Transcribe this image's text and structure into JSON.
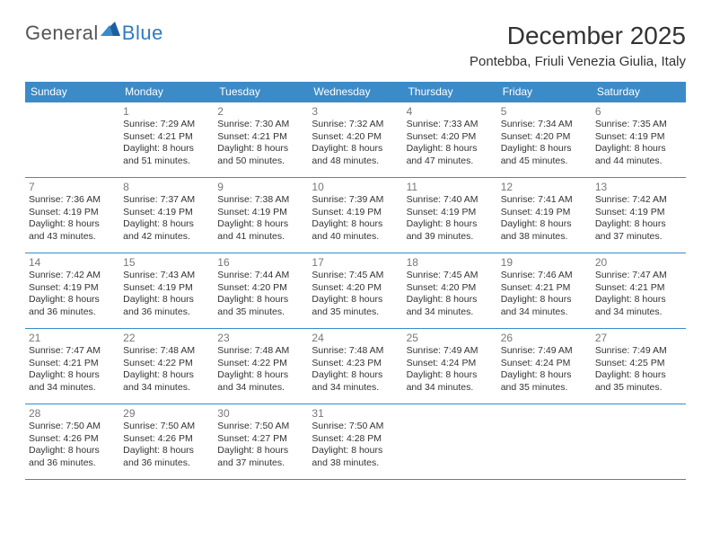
{
  "logo": {
    "text1": "General",
    "text2": "Blue"
  },
  "title": "December 2025",
  "location": "Pontebba, Friuli Venezia Giulia, Italy",
  "colors": {
    "header_bg": "#3b8bc9",
    "header_fg": "#ffffff",
    "border": "#3b8bc9",
    "daynum": "#777777",
    "text": "#333333",
    "logo_gray": "#555555",
    "logo_blue": "#2f7ac0"
  },
  "weekdays": [
    "Sunday",
    "Monday",
    "Tuesday",
    "Wednesday",
    "Thursday",
    "Friday",
    "Saturday"
  ],
  "grid": [
    [
      null,
      {
        "n": "1",
        "sr": "7:29 AM",
        "ss": "4:21 PM",
        "dl": "8 hours and 51 minutes."
      },
      {
        "n": "2",
        "sr": "7:30 AM",
        "ss": "4:21 PM",
        "dl": "8 hours and 50 minutes."
      },
      {
        "n": "3",
        "sr": "7:32 AM",
        "ss": "4:20 PM",
        "dl": "8 hours and 48 minutes."
      },
      {
        "n": "4",
        "sr": "7:33 AM",
        "ss": "4:20 PM",
        "dl": "8 hours and 47 minutes."
      },
      {
        "n": "5",
        "sr": "7:34 AM",
        "ss": "4:20 PM",
        "dl": "8 hours and 45 minutes."
      },
      {
        "n": "6",
        "sr": "7:35 AM",
        "ss": "4:19 PM",
        "dl": "8 hours and 44 minutes."
      }
    ],
    [
      {
        "n": "7",
        "sr": "7:36 AM",
        "ss": "4:19 PM",
        "dl": "8 hours and 43 minutes."
      },
      {
        "n": "8",
        "sr": "7:37 AM",
        "ss": "4:19 PM",
        "dl": "8 hours and 42 minutes."
      },
      {
        "n": "9",
        "sr": "7:38 AM",
        "ss": "4:19 PM",
        "dl": "8 hours and 41 minutes."
      },
      {
        "n": "10",
        "sr": "7:39 AM",
        "ss": "4:19 PM",
        "dl": "8 hours and 40 minutes."
      },
      {
        "n": "11",
        "sr": "7:40 AM",
        "ss": "4:19 PM",
        "dl": "8 hours and 39 minutes."
      },
      {
        "n": "12",
        "sr": "7:41 AM",
        "ss": "4:19 PM",
        "dl": "8 hours and 38 minutes."
      },
      {
        "n": "13",
        "sr": "7:42 AM",
        "ss": "4:19 PM",
        "dl": "8 hours and 37 minutes."
      }
    ],
    [
      {
        "n": "14",
        "sr": "7:42 AM",
        "ss": "4:19 PM",
        "dl": "8 hours and 36 minutes."
      },
      {
        "n": "15",
        "sr": "7:43 AM",
        "ss": "4:19 PM",
        "dl": "8 hours and 36 minutes."
      },
      {
        "n": "16",
        "sr": "7:44 AM",
        "ss": "4:20 PM",
        "dl": "8 hours and 35 minutes."
      },
      {
        "n": "17",
        "sr": "7:45 AM",
        "ss": "4:20 PM",
        "dl": "8 hours and 35 minutes."
      },
      {
        "n": "18",
        "sr": "7:45 AM",
        "ss": "4:20 PM",
        "dl": "8 hours and 34 minutes."
      },
      {
        "n": "19",
        "sr": "7:46 AM",
        "ss": "4:21 PM",
        "dl": "8 hours and 34 minutes."
      },
      {
        "n": "20",
        "sr": "7:47 AM",
        "ss": "4:21 PM",
        "dl": "8 hours and 34 minutes."
      }
    ],
    [
      {
        "n": "21",
        "sr": "7:47 AM",
        "ss": "4:21 PM",
        "dl": "8 hours and 34 minutes."
      },
      {
        "n": "22",
        "sr": "7:48 AM",
        "ss": "4:22 PM",
        "dl": "8 hours and 34 minutes."
      },
      {
        "n": "23",
        "sr": "7:48 AM",
        "ss": "4:22 PM",
        "dl": "8 hours and 34 minutes."
      },
      {
        "n": "24",
        "sr": "7:48 AM",
        "ss": "4:23 PM",
        "dl": "8 hours and 34 minutes."
      },
      {
        "n": "25",
        "sr": "7:49 AM",
        "ss": "4:24 PM",
        "dl": "8 hours and 34 minutes."
      },
      {
        "n": "26",
        "sr": "7:49 AM",
        "ss": "4:24 PM",
        "dl": "8 hours and 35 minutes."
      },
      {
        "n": "27",
        "sr": "7:49 AM",
        "ss": "4:25 PM",
        "dl": "8 hours and 35 minutes."
      }
    ],
    [
      {
        "n": "28",
        "sr": "7:50 AM",
        "ss": "4:26 PM",
        "dl": "8 hours and 36 minutes."
      },
      {
        "n": "29",
        "sr": "7:50 AM",
        "ss": "4:26 PM",
        "dl": "8 hours and 36 minutes."
      },
      {
        "n": "30",
        "sr": "7:50 AM",
        "ss": "4:27 PM",
        "dl": "8 hours and 37 minutes."
      },
      {
        "n": "31",
        "sr": "7:50 AM",
        "ss": "4:28 PM",
        "dl": "8 hours and 38 minutes."
      },
      null,
      null,
      null
    ]
  ],
  "labels": {
    "sunrise": "Sunrise:",
    "sunset": "Sunset:",
    "daylight": "Daylight:"
  }
}
